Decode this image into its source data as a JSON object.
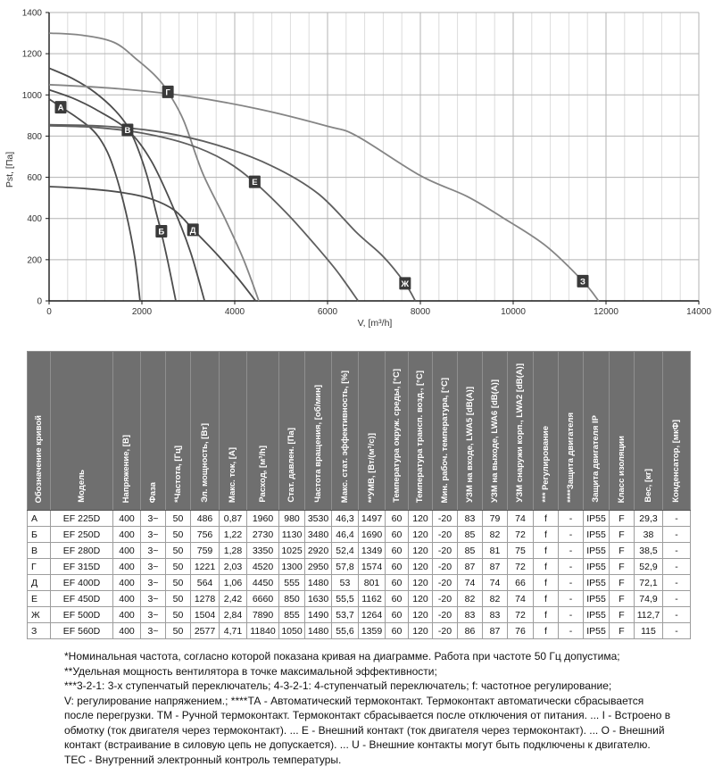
{
  "chart": {
    "ylabel": "Pst, [Па]",
    "xlabel": "V, [m³/h]"
  },
  "chart_data": {
    "type": "line",
    "title": "",
    "xlabel": "V, [m³/h]",
    "ylabel": "Pst, [Па]",
    "xlim": [
      0,
      14000
    ],
    "ylim": [
      0,
      1400
    ],
    "x_ticks": [
      0,
      2000,
      4000,
      6000,
      8000,
      10000,
      12000,
      14000
    ],
    "y_ticks": [
      0,
      200,
      400,
      600,
      800,
      1000,
      1200,
      1400
    ],
    "grid": {
      "x_minor_step": 400,
      "x_major_step": 2000,
      "y_major_step": 200
    },
    "legend_position": "labels-on-curves",
    "series": [
      {
        "name": "А",
        "color": "#4d4d4d",
        "label_at": [
          250,
          940
        ],
        "points": [
          [
            0,
            980
          ],
          [
            300,
            935
          ],
          [
            600,
            890
          ],
          [
            900,
            838
          ],
          [
            1100,
            785
          ],
          [
            1300,
            700
          ],
          [
            1500,
            565
          ],
          [
            1700,
            385
          ],
          [
            1850,
            205
          ],
          [
            1960,
            0
          ]
        ]
      },
      {
        "name": "Б",
        "color": "#4d4d4d",
        "label_at": [
          2420,
          338
        ],
        "points": [
          [
            0,
            1130
          ],
          [
            500,
            1080
          ],
          [
            1000,
            1010
          ],
          [
            1500,
            905
          ],
          [
            1800,
            800
          ],
          [
            2100,
            615
          ],
          [
            2300,
            435
          ],
          [
            2420,
            330
          ],
          [
            2560,
            190
          ],
          [
            2730,
            0
          ]
        ]
      },
      {
        "name": "В",
        "color": "#4d4d4d",
        "label_at": [
          1690,
          830
        ],
        "points": [
          [
            0,
            1025
          ],
          [
            500,
            985
          ],
          [
            1000,
            930
          ],
          [
            1690,
            830
          ],
          [
            2200,
            680
          ],
          [
            2700,
            440
          ],
          [
            3050,
            235
          ],
          [
            3350,
            0
          ]
        ]
      },
      {
        "name": "Г",
        "color": "#858585",
        "label_at": [
          2560,
          1015
        ],
        "points": [
          [
            0,
            1300
          ],
          [
            700,
            1290
          ],
          [
            1400,
            1255
          ],
          [
            1900,
            1170
          ],
          [
            2300,
            1090
          ],
          [
            2560,
            1015
          ],
          [
            2900,
            875
          ],
          [
            3310,
            620
          ],
          [
            3800,
            395
          ],
          [
            4200,
            195
          ],
          [
            4520,
            0
          ]
        ]
      },
      {
        "name": "Д",
        "color": "#4d4d4d",
        "label_at": [
          3100,
          345
        ],
        "points": [
          [
            0,
            555
          ],
          [
            800,
            545
          ],
          [
            1600,
            525
          ],
          [
            2200,
            495
          ],
          [
            2700,
            440
          ],
          [
            3130,
            340
          ],
          [
            3600,
            230
          ],
          [
            4050,
            115
          ],
          [
            4450,
            0
          ]
        ]
      },
      {
        "name": "Е",
        "color": "#5f5f5f",
        "label_at": [
          4430,
          578
        ],
        "points": [
          [
            0,
            850
          ],
          [
            1000,
            842
          ],
          [
            2000,
            815
          ],
          [
            3000,
            760
          ],
          [
            3800,
            680
          ],
          [
            4430,
            575
          ],
          [
            5100,
            430
          ],
          [
            5700,
            280
          ],
          [
            6200,
            145
          ],
          [
            6660,
            0
          ]
        ]
      },
      {
        "name": "Ж",
        "color": "#5f5f5f",
        "label_at": [
          7670,
          85
        ],
        "points": [
          [
            0,
            855
          ],
          [
            1200,
            848
          ],
          [
            2400,
            820
          ],
          [
            3600,
            758
          ],
          [
            4800,
            655
          ],
          [
            5800,
            520
          ],
          [
            6635,
            330
          ],
          [
            7200,
            215
          ],
          [
            7670,
            85
          ],
          [
            7890,
            0
          ]
        ]
      },
      {
        "name": "З",
        "color": "#858585",
        "label_at": [
          11500,
          96
        ],
        "points": [
          [
            0,
            1050
          ],
          [
            1500,
            1030
          ],
          [
            3000,
            993
          ],
          [
            4500,
            932
          ],
          [
            6000,
            848
          ],
          [
            6635,
            800
          ],
          [
            8000,
            608
          ],
          [
            9000,
            508
          ],
          [
            9770,
            405
          ],
          [
            10700,
            268
          ],
          [
            11500,
            96
          ],
          [
            11840,
            0
          ]
        ]
      }
    ]
  },
  "table": {
    "columns": [
      "Обозначение кривой",
      "Модель",
      "Напряжение, [В]",
      "Фаза",
      "*Частота, [Гц]",
      "Эл. мощность, [Вт]",
      "Макс. ток, [А]",
      "Расход, [м³/h]",
      "Стат. давлен. [Па]",
      "Частота вращения, [об/мин]",
      "Макс. стат. эффективность, [%]",
      "**УМВ, [Вт/(м³/с)]",
      "Температура окруж. среды, [°C]",
      "Температура трансп. возд., [°C]",
      "Мин. рабоч. температура, [°C]",
      "УЗМ на входе, LWA5 [dB(A)]",
      "УЗМ на выходе, LWA6 [dB(A)]",
      "УЗМ снаружи корп., LWA2 [dB(A)]",
      "*** Регулирование",
      "****Защита двигателя",
      "Защита двигателя IP",
      "Класс изоляции",
      "Вес, [кг]",
      "Конденсатор, [мкФ]"
    ],
    "rows": [
      [
        "А",
        "EF 225D",
        "400",
        "3~",
        "50",
        "486",
        "0,87",
        "1960",
        "980",
        "3530",
        "46,3",
        "1497",
        "60",
        "120",
        "-20",
        "83",
        "79",
        "74",
        "f",
        "-",
        "IP55",
        "F",
        "29,3",
        "-"
      ],
      [
        "Б",
        "EF 250D",
        "400",
        "3~",
        "50",
        "756",
        "1,22",
        "2730",
        "1130",
        "3480",
        "46,4",
        "1690",
        "60",
        "120",
        "-20",
        "85",
        "82",
        "72",
        "f",
        "-",
        "IP55",
        "F",
        "38",
        "-"
      ],
      [
        "В",
        "EF 280D",
        "400",
        "3~",
        "50",
        "759",
        "1,28",
        "3350",
        "1025",
        "2920",
        "52,4",
        "1349",
        "60",
        "120",
        "-20",
        "85",
        "81",
        "75",
        "f",
        "-",
        "IP55",
        "F",
        "38,5",
        "-"
      ],
      [
        "Г",
        "EF 315D",
        "400",
        "3~",
        "50",
        "1221",
        "2,03",
        "4520",
        "1300",
        "2950",
        "57,8",
        "1574",
        "60",
        "120",
        "-20",
        "87",
        "87",
        "72",
        "f",
        "-",
        "IP55",
        "F",
        "52,9",
        "-"
      ],
      [
        "Д",
        "EF 400D",
        "400",
        "3~",
        "50",
        "564",
        "1,06",
        "4450",
        "555",
        "1480",
        "53",
        "801",
        "60",
        "120",
        "-20",
        "74",
        "74",
        "66",
        "f",
        "-",
        "IP55",
        "F",
        "72,1",
        "-"
      ],
      [
        "Е",
        "EF 450D",
        "400",
        "3~",
        "50",
        "1278",
        "2,42",
        "6660",
        "850",
        "1630",
        "55,5",
        "1162",
        "60",
        "120",
        "-20",
        "82",
        "82",
        "74",
        "f",
        "-",
        "IP55",
        "F",
        "74,9",
        "-"
      ],
      [
        "Ж",
        "EF 500D",
        "400",
        "3~",
        "50",
        "1504",
        "2,84",
        "7890",
        "855",
        "1490",
        "53,7",
        "1264",
        "60",
        "120",
        "-20",
        "83",
        "83",
        "72",
        "f",
        "-",
        "IP55",
        "F",
        "112,7",
        "-"
      ],
      [
        "З",
        "EF 560D",
        "400",
        "3~",
        "50",
        "2577",
        "4,71",
        "11840",
        "1050",
        "1480",
        "55,6",
        "1359",
        "60",
        "120",
        "-20",
        "86",
        "87",
        "76",
        "f",
        "-",
        "IP55",
        "F",
        "115",
        "-"
      ]
    ]
  },
  "footnotes": [
    "*Номинальная частота, согласно которой показана кривая на диаграмме. Работа при частоте 50 Гц допустима;",
    "**Удельная мощность вентилятора в точке максимальной эффективности;",
    "***3-2-1: 3-х ступенчатый переключатель; 4-3-2-1: 4-ступенчатый переключатель; f: частотное регулирование;",
    "V: регулирование напряжением.; ****ТА - Автоматический термоконтакт. Термоконтакт автоматически сбрасывается после перегрузки. ТМ - Ручной термоконтакт. Термоконтакт сбрасывается после отключения от питания. ... I - Встроено в обмотку (ток двигателя через термоконтакт). ... Е - Внешний контакт (ток двигателя через термоконтакт). ... О - Внешний контакт (встраивание в силовую цепь не допускается). ... U - Внешние контакты могут быть подключены к двигателю.",
    "ТЕС - Внутренний электронный контроль температуры."
  ],
  "colors": {
    "table_header_bg": "#6f6f6f",
    "table_border": "#9d9d9d",
    "header_text": "#ffffff",
    "grid_minor": "#dcdcdc",
    "grid_major": "#b3b3b3",
    "axis": "#1a1a1a",
    "curve_label_bg": "#3a3a3a",
    "tick_text": "#333333"
  }
}
